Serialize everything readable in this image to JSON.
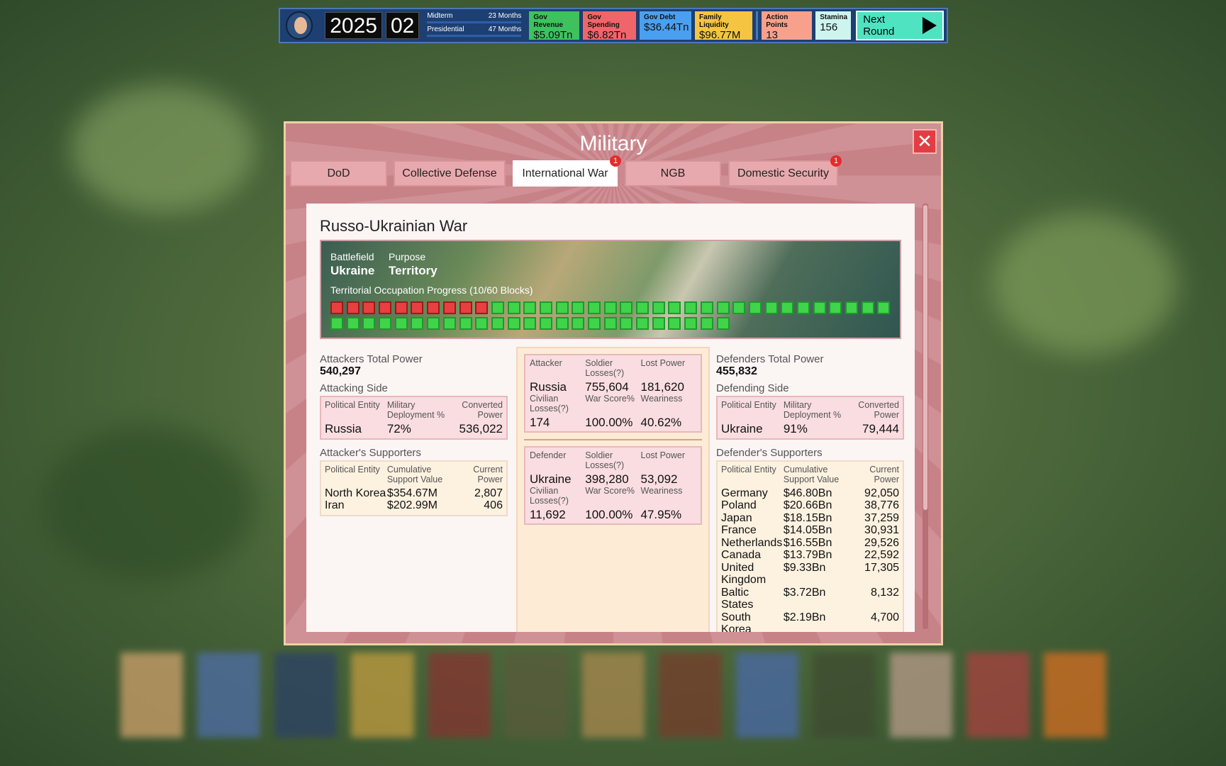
{
  "top_bar": {
    "year": "2025",
    "month": "02",
    "midterm": {
      "label": "Midterm",
      "value": "23 Months"
    },
    "presidential": {
      "label": "Presidential",
      "value": "47 Months"
    },
    "stats": [
      {
        "label": "Gov Revenue",
        "value": "$5.09Tn"
      },
      {
        "label": "Gov Spending",
        "value": "$6.82Tn"
      },
      {
        "label": "Gov Debt",
        "value": "$36.44Tn"
      },
      {
        "label": "Family Liquidity",
        "value": "$96.77M"
      },
      {
        "label": "Action Points",
        "value": "13"
      },
      {
        "label": "Stamina",
        "value": "156"
      }
    ],
    "next_round": "Next Round"
  },
  "modal": {
    "title": "Military",
    "tabs": [
      {
        "label": "DoD"
      },
      {
        "label": "Collective Defense"
      },
      {
        "label": "International War",
        "badge": "1"
      },
      {
        "label": "NGB"
      },
      {
        "label": "Domestic Security",
        "badge": "1"
      }
    ],
    "war": {
      "title": "Russo-Ukrainian War",
      "banner": {
        "battlefield_label": "Battlefield",
        "battlefield": "Ukraine",
        "purpose_label": "Purpose",
        "purpose": "Territory",
        "progress_label": "Territorial Occupation Progress (10/60 Blocks)"
      },
      "attackers": {
        "total_label": "Attackers Total Power",
        "total": "540,297",
        "side_label": "Attacking Side",
        "side_table": {
          "headers": [
            "Political Entity",
            "Military Deployment %",
            "Converted Power"
          ],
          "rows": [
            [
              "Russia",
              "72%",
              "536,022"
            ]
          ]
        },
        "supporters_label": "Attacker's Supporters",
        "supporters": {
          "headers": [
            "Political Entity",
            "Cumulative Support Value",
            "Current Power"
          ],
          "rows": [
            [
              "North Korea",
              "$354.67M",
              "2,807"
            ],
            [
              "Iran",
              "$202.99M",
              "406"
            ]
          ]
        }
      },
      "attacker_card": {
        "headers1": [
          "Attacker",
          "Soldier Losses(?)",
          "Lost Power"
        ],
        "values1": [
          "Russia",
          "755,604",
          "181,620"
        ],
        "headers2": [
          "Civilian Losses(?)",
          "War Score%",
          "Weariness"
        ],
        "values2": [
          "174",
          "100.00%",
          "40.62%"
        ]
      },
      "defender_card": {
        "headers1": [
          "Defender",
          "Soldier Losses(?)",
          "Lost Power"
        ],
        "values1": [
          "Ukraine",
          "398,280",
          "53,092"
        ],
        "headers2": [
          "Civilian Losses(?)",
          "War Score%",
          "Weariness"
        ],
        "values2": [
          "11,692",
          "100.00%",
          "47.95%"
        ]
      },
      "defenders": {
        "total_label": "Defenders Total Power",
        "total": "455,832",
        "side_label": "Defending Side",
        "side_table": {
          "headers": [
            "Political Entity",
            "Military Deployment %",
            "Converted Power"
          ],
          "rows": [
            [
              "Ukraine",
              "91%",
              "79,444"
            ]
          ]
        },
        "supporters_label": "Defender's Supporters",
        "supporters": {
          "headers": [
            "Political Entity",
            "Cumulative Support Value",
            "Current Power"
          ],
          "rows": [
            [
              "Germany",
              "$46.80Bn",
              "92,050"
            ],
            [
              "Poland",
              "$20.66Bn",
              "38,776"
            ],
            [
              "Japan",
              "$18.15Bn",
              "37,259"
            ],
            [
              "France",
              "$14.05Bn",
              "30,931"
            ],
            [
              "Netherlands",
              "$16.55Bn",
              "29,526"
            ],
            [
              "Canada",
              "$13.79Bn",
              "22,592"
            ],
            [
              "United Kingdom",
              "$9.33Bn",
              "17,305"
            ],
            [
              "Baltic States",
              "$3.72Bn",
              "8,132"
            ],
            [
              "South Korea",
              "$2.19Bn",
              "4,700"
            ]
          ]
        }
      }
    }
  }
}
